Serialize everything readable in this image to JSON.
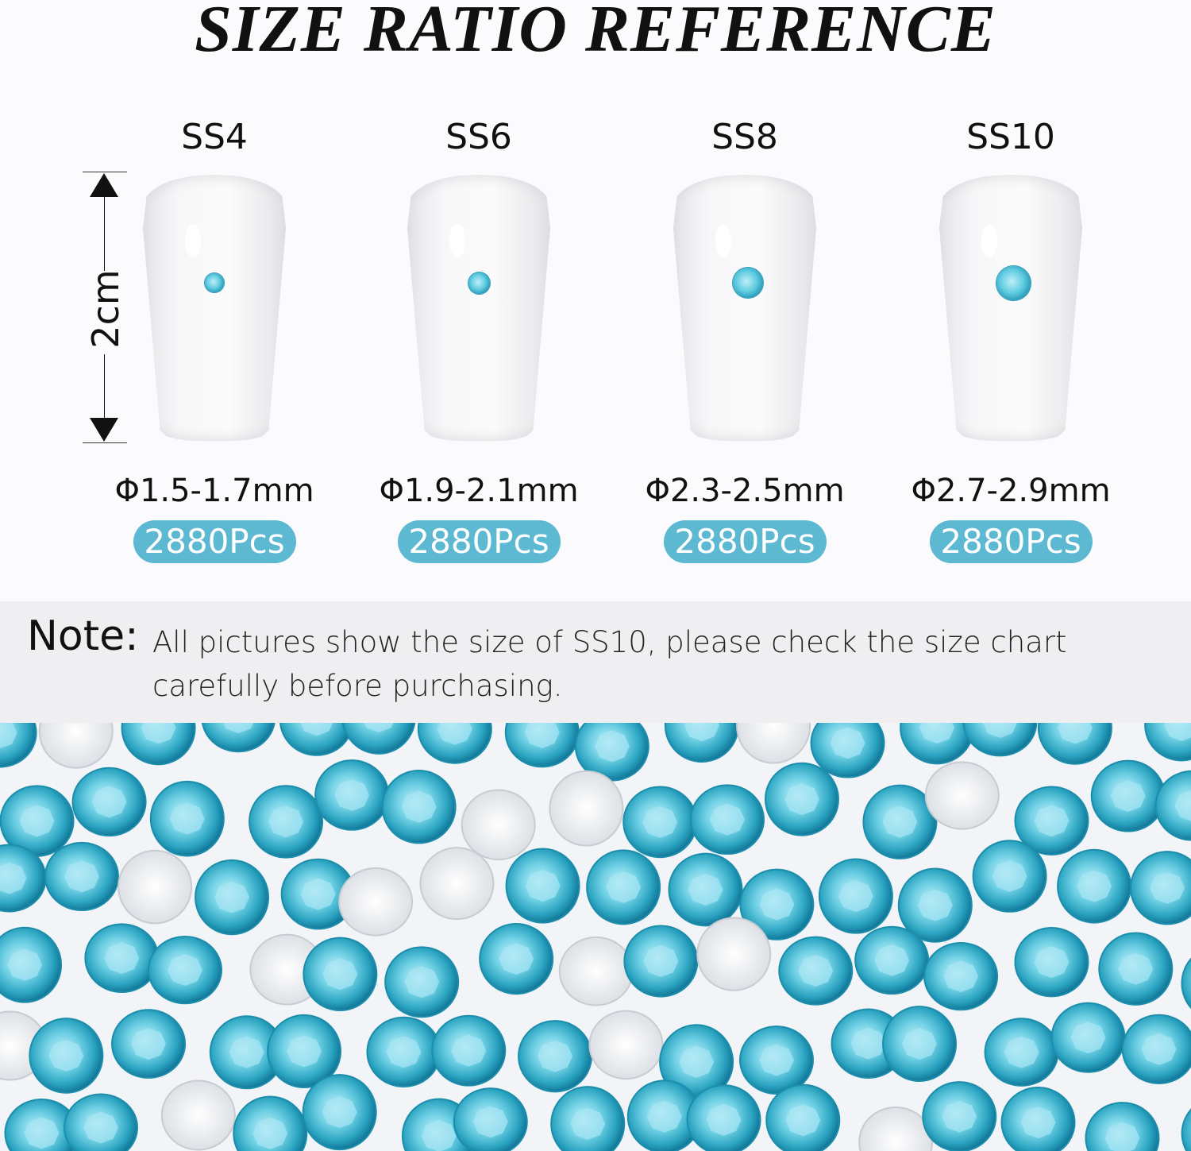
{
  "title": "SIZE RATIO REFERENCE",
  "scale_label": "2cm",
  "sizes": [
    {
      "label": "SS4",
      "diameter": "Φ1.5-1.7mm",
      "count": "2880Pcs"
    },
    {
      "label": "SS6",
      "diameter": "Φ1.9-2.1mm",
      "count": "2880Pcs"
    },
    {
      "label": "SS8",
      "diameter": "Φ2.3-2.5mm",
      "count": "2880Pcs"
    },
    {
      "label": "SS10",
      "diameter": "Φ2.7-2.9mm",
      "count": "2880Pcs"
    }
  ],
  "note": {
    "key": "Note:",
    "text": "All pictures show the size of SS10, please check the size chart carefully before purchasing."
  },
  "colors": {
    "badge": "#5db8d2",
    "gem": "#3fb6d2",
    "note_bg": "#efeff2"
  }
}
